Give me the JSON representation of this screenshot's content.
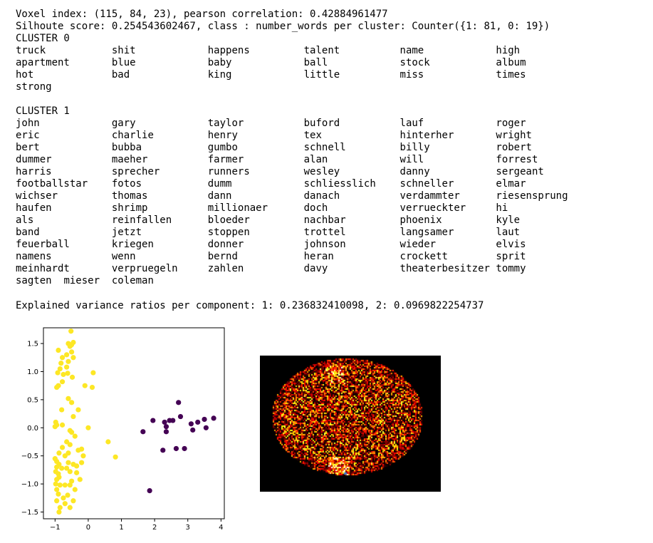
{
  "header": {
    "voxel_line": "Voxel index: (115, 84, 23), pearson correlation: 0.42884961477",
    "silhouette_line": "Silhoute score: 0.254543602467, class : number_words per cluster: Counter({1: 81, 0: 19})"
  },
  "clusters": [
    {
      "title": "CLUSTER 0",
      "rows": [
        [
          "truck",
          "shit",
          "happens",
          "talent",
          "name",
          "high"
        ],
        [
          "apartment",
          "blue",
          "baby",
          "ball",
          "stock",
          "album"
        ],
        [
          "hot",
          "bad",
          "king",
          "little",
          "miss",
          "times"
        ],
        [
          "strong"
        ]
      ]
    },
    {
      "title": "CLUSTER 1",
      "rows": [
        [
          "john",
          "gary",
          "taylor",
          "buford",
          "lauf",
          "roger"
        ],
        [
          "eric",
          "charlie",
          "henry",
          "tex",
          "hinterher",
          "wright"
        ],
        [
          "bert",
          "bubba",
          "gumbo",
          "schnell",
          "billy",
          "robert"
        ],
        [
          "dummer",
          "maeher",
          "farmer",
          "alan",
          "will",
          "forrest"
        ],
        [
          "harris",
          "sprecher",
          "runners",
          "wesley",
          "danny",
          "sergeant"
        ],
        [
          "footballstar",
          "fotos",
          "dumm",
          "schliesslich",
          "schneller",
          "elmar"
        ],
        [
          "wichser",
          "thomas",
          "dann",
          "danach",
          "verdammter",
          "riesensprung"
        ],
        [
          "haufen",
          "shrimp",
          "millionaer",
          "doch",
          "verrueckter",
          "hi"
        ],
        [
          "als",
          "reinfallen",
          "bloeder",
          "nachbar",
          "phoenix",
          "kyle"
        ],
        [
          "band",
          "jetzt",
          "stoppen",
          "trottel",
          "langsamer",
          "laut"
        ],
        [
          "feuerball",
          "kriegen",
          "donner",
          "johnson",
          "wieder",
          "elvis"
        ],
        [
          "namens",
          "wenn",
          "bernd",
          "heran",
          "crockett",
          "sprit"
        ],
        [
          "meinhardt",
          "verpruegeln",
          "zahlen",
          "davy",
          "theaterbesitzer",
          "tommy"
        ],
        [
          "sagten",
          "mieser",
          "coleman"
        ]
      ]
    }
  ],
  "variance_line": "Explained variance ratios per component: 1: 0.236832410098, 2: 0.0969822254737",
  "colors": {
    "cluster_0": "#440154",
    "cluster_1": "#fde725"
  },
  "chart_data": [
    {
      "type": "scatter",
      "xlim": [
        -1.35,
        4.1
      ],
      "ylim": [
        -1.62,
        1.78
      ],
      "xticks": [
        "−1",
        "0",
        "1",
        "2",
        "3",
        "4"
      ],
      "yticks": [
        "−1.5",
        "−1.0",
        "−0.5",
        "0.0",
        "0.5",
        "1.0",
        "1.5"
      ],
      "grid": false,
      "series": [
        {
          "color": "#440154",
          "points": [
            [
              1.65,
              -0.07
            ],
            [
              1.95,
              0.13
            ],
            [
              2.25,
              -0.4
            ],
            [
              2.3,
              0.1
            ],
            [
              2.35,
              -0.07
            ],
            [
              2.35,
              0.02
            ],
            [
              2.45,
              0.13
            ],
            [
              2.55,
              0.13
            ],
            [
              2.65,
              -0.37
            ],
            [
              2.72,
              0.45
            ],
            [
              2.78,
              0.2
            ],
            [
              2.9,
              -0.37
            ],
            [
              3.1,
              0.07
            ],
            [
              3.15,
              -0.04
            ],
            [
              3.3,
              0.1
            ],
            [
              3.5,
              0.15
            ],
            [
              3.55,
              0.0
            ],
            [
              3.78,
              0.17
            ],
            [
              1.85,
              -1.12
            ]
          ]
        },
        {
          "color": "#fde725",
          "points": [
            [
              -0.52,
              1.72
            ],
            [
              -0.6,
              1.5
            ],
            [
              -0.45,
              1.52
            ],
            [
              -0.5,
              1.48
            ],
            [
              -0.55,
              1.45
            ],
            [
              -0.65,
              1.3
            ],
            [
              -0.5,
              1.35
            ],
            [
              -0.9,
              1.38
            ],
            [
              -0.78,
              1.25
            ],
            [
              -0.82,
              1.15
            ],
            [
              -0.6,
              1.18
            ],
            [
              -0.45,
              1.25
            ],
            [
              -0.92,
              0.98
            ],
            [
              -0.75,
              0.95
            ],
            [
              -0.62,
              0.97
            ],
            [
              -0.48,
              0.9
            ],
            [
              -0.78,
              0.82
            ],
            [
              -0.9,
              0.75
            ],
            [
              -0.95,
              0.72
            ],
            [
              0.15,
              0.98
            ],
            [
              -0.1,
              0.75
            ],
            [
              0.12,
              0.72
            ],
            [
              -0.6,
              0.52
            ],
            [
              -0.5,
              0.45
            ],
            [
              -0.8,
              0.32
            ],
            [
              -0.98,
              0.1
            ],
            [
              -1.0,
              0.02
            ],
            [
              -0.78,
              0.05
            ],
            [
              -0.55,
              -0.05
            ],
            [
              -0.5,
              -0.08
            ],
            [
              0.0,
              0.0
            ],
            [
              -0.65,
              -0.25
            ],
            [
              -0.55,
              -0.3
            ],
            [
              -0.78,
              -0.35
            ],
            [
              -0.88,
              -0.45
            ],
            [
              -0.2,
              -0.38
            ],
            [
              -0.6,
              -0.45
            ],
            [
              -0.15,
              -0.5
            ],
            [
              0.6,
              -0.25
            ],
            [
              0.82,
              -0.52
            ],
            [
              -0.95,
              -0.6
            ],
            [
              -0.88,
              -0.65
            ],
            [
              -0.6,
              -0.62
            ],
            [
              -0.45,
              -0.65
            ],
            [
              -0.2,
              -0.62
            ],
            [
              -0.95,
              -0.7
            ],
            [
              -0.8,
              -0.72
            ],
            [
              -0.65,
              -0.72
            ],
            [
              -0.35,
              -0.68
            ],
            [
              -0.98,
              -0.78
            ],
            [
              -0.9,
              -0.82
            ],
            [
              -0.55,
              -0.78
            ],
            [
              -0.35,
              -0.8
            ],
            [
              -0.88,
              -0.88
            ],
            [
              -0.95,
              -0.92
            ],
            [
              -0.25,
              -0.92
            ],
            [
              -0.98,
              -1.0
            ],
            [
              -0.85,
              -1.02
            ],
            [
              -0.55,
              -1.02
            ],
            [
              -0.95,
              -1.1
            ],
            [
              -0.4,
              -1.1
            ],
            [
              -0.9,
              -1.18
            ],
            [
              -0.75,
              -1.25
            ],
            [
              -0.62,
              -1.2
            ],
            [
              -0.45,
              -1.3
            ],
            [
              -0.7,
              -1.35
            ],
            [
              -0.95,
              -1.3
            ],
            [
              -0.85,
              -1.42
            ],
            [
              -0.55,
              -1.42
            ],
            [
              -0.88,
              -1.5
            ],
            [
              -0.7,
              -1.02
            ],
            [
              -0.5,
              -0.95
            ],
            [
              -1.0,
              -0.55
            ],
            [
              -0.4,
              -0.15
            ],
            [
              -0.3,
              0.32
            ],
            [
              -0.65,
              1.08
            ],
            [
              -0.85,
              1.05
            ],
            [
              -0.95,
              0.05
            ],
            [
              -0.7,
              -0.5
            ],
            [
              -0.3,
              -0.4
            ],
            [
              -0.45,
              0.2
            ]
          ]
        }
      ]
    }
  ]
}
